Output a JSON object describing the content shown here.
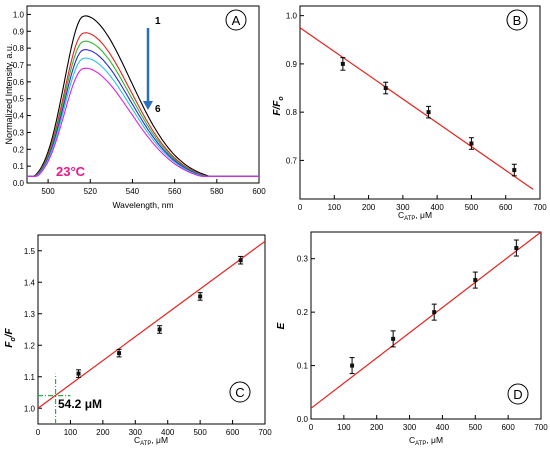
{
  "figure": {
    "colors": {
      "fit": "#e8201c",
      "arrow": "#2a6fbb",
      "temp": "#e8198c",
      "crosshair": "#22b14c"
    }
  },
  "chart_data": [
    {
      "panel": "A",
      "type": "line",
      "xlabel": "Wavelength, nm",
      "ylabel": "Normalized Intensity, a.u.",
      "xlim": [
        490,
        600
      ],
      "ylim": [
        0,
        1.05
      ],
      "xticks": [
        "500",
        "520",
        "540",
        "560",
        "580",
        "600"
      ],
      "yticks": [
        "0.0",
        "0.1",
        "0.2",
        "0.3",
        "0.4",
        "0.5",
        "0.6",
        "0.7",
        "0.8",
        "0.9",
        "1.0"
      ],
      "peak_wavelength": 517,
      "series": [
        {
          "name": "1",
          "peak": 0.99,
          "color": "#000000"
        },
        {
          "peak": 0.89,
          "color": "#e8201c"
        },
        {
          "peak": 0.84,
          "color": "#2db52d"
        },
        {
          "peak": 0.79,
          "color": "#2b2bd8"
        },
        {
          "peak": 0.74,
          "color": "#27c6e0"
        },
        {
          "name": "6",
          "peak": 0.68,
          "color": "#e020e0"
        }
      ],
      "arrow_top_label": "1",
      "arrow_bottom_label": "6",
      "annotation": "23°C"
    },
    {
      "panel": "B",
      "type": "scatter",
      "ylabel_main": "F/F",
      "ylabel_sub": "o",
      "xlabel_main": "C",
      "xlabel_sub": "ATP",
      "xlabel_unit": ", μM",
      "xlim": [
        0,
        700
      ],
      "ylim": [
        0.62,
        1.02
      ],
      "xticks": [
        "0",
        "100",
        "200",
        "300",
        "400",
        "500",
        "600",
        "700"
      ],
      "yticks": [
        "0.7",
        "0.8",
        "0.9",
        "1.0"
      ],
      "x": [
        125,
        250,
        375,
        500,
        625
      ],
      "y": [
        0.9,
        0.85,
        0.8,
        0.735,
        0.68
      ],
      "yerr": [
        0.013,
        0.012,
        0.012,
        0.012,
        0.012
      ],
      "fit": {
        "x": [
          0,
          680
        ],
        "y": [
          0.975,
          0.64
        ]
      }
    },
    {
      "panel": "C",
      "type": "scatter",
      "ylabel_main": "F",
      "ylabel_sub": "o",
      "ylabel_tail": "/F",
      "xlabel_main": "C",
      "xlabel_sub": "ATP",
      "xlabel_unit": ", μM",
      "xlim": [
        0,
        700
      ],
      "ylim": [
        0.95,
        1.55
      ],
      "xticks": [
        "0",
        "100",
        "200",
        "300",
        "400",
        "500",
        "600",
        "700"
      ],
      "yticks": [
        "1.0",
        "1.1",
        "1.2",
        "1.3",
        "1.4",
        "1.5"
      ],
      "x": [
        125,
        250,
        375,
        500,
        625
      ],
      "y": [
        1.11,
        1.175,
        1.25,
        1.355,
        1.47
      ],
      "yerr": [
        0.012,
        0.012,
        0.012,
        0.012,
        0.012
      ],
      "fit": {
        "x": [
          0,
          700
        ],
        "y": [
          1.0,
          1.53
        ]
      },
      "crosshair": {
        "x": 54.2,
        "y": 1.04
      },
      "annotation": "54.2 μM"
    },
    {
      "panel": "D",
      "type": "scatter",
      "ylabel_main": "E",
      "xlabel_main": "C",
      "xlabel_sub": "ATP",
      "xlabel_unit": ", μM",
      "xlim": [
        0,
        700
      ],
      "ylim": [
        0.0,
        0.35
      ],
      "xticks": [
        "0",
        "100",
        "200",
        "300",
        "400",
        "500",
        "600",
        "700"
      ],
      "yticks": [
        "0.0",
        "0.1",
        "0.2",
        "0.3"
      ],
      "x": [
        125,
        250,
        375,
        500,
        625
      ],
      "y": [
        0.1,
        0.15,
        0.2,
        0.26,
        0.32
      ],
      "yerr": [
        0.015,
        0.015,
        0.015,
        0.015,
        0.015
      ],
      "fit": {
        "x": [
          0,
          700
        ],
        "y": [
          0.02,
          0.35
        ]
      }
    }
  ]
}
